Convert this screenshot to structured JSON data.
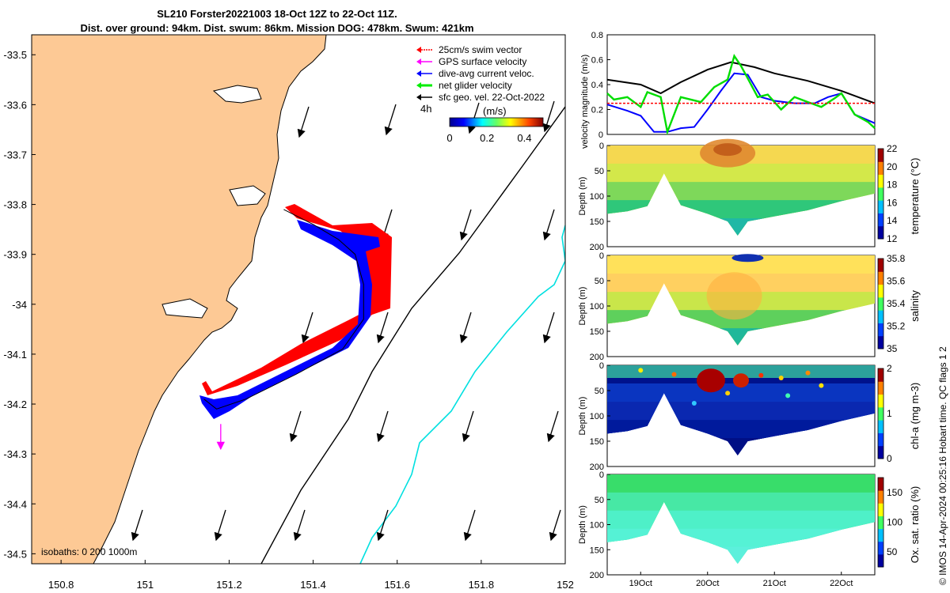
{
  "title_line1": "SL210 Forster20221003 18-Oct 12Z to 22-Oct 11Z.",
  "title_line2": "Dist. over ground: 94km. Dist. swum: 86km. Mission DOG: 478km. Swum: 421km",
  "credit": "© IMOS 14-Apr-2024 00:25:16 Hobart time. QC flags 1  2",
  "legend": [
    {
      "label": "25cm/s swim vector",
      "color": "#ff0000"
    },
    {
      "label": "GPS surface velocity",
      "color": "#ff00ff"
    },
    {
      "label": "dive-avg current veloc.",
      "color": "#0000ff"
    },
    {
      "label": "net glider velocity",
      "color": "#00ee00"
    },
    {
      "label": "sfc geo. vel. 22-Oct-2022",
      "color": "#000000"
    }
  ],
  "legend_4h": "4h",
  "colorbar": {
    "label": "(m/s)",
    "ticks": [
      "0",
      "0.2",
      "0.4"
    ],
    "range": [
      0,
      0.5
    ]
  },
  "isobaths_text": "isobaths: 0   200  1000m",
  "chart_data": [
    {
      "type": "map",
      "xticks": [
        "150.8",
        "151",
        "151.2",
        "151.4",
        "151.6",
        "151.8",
        "152"
      ],
      "yticks": [
        "-33.5",
        "-33.6",
        "-33.7",
        "-33.8",
        "-33.9",
        "-34",
        "-34.1",
        "-34.2",
        "-34.3",
        "-34.4",
        "-34.5"
      ],
      "xlim": [
        150.73,
        152.0
      ],
      "ylim": [
        -34.52,
        -33.46
      ],
      "glider_track": [
        [
          151.33,
          -33.81
        ],
        [
          151.4,
          -33.84
        ],
        [
          151.46,
          -33.87
        ],
        [
          151.5,
          -33.9
        ],
        [
          151.52,
          -33.96
        ],
        [
          151.52,
          -34.03
        ],
        [
          151.47,
          -34.09
        ],
        [
          151.36,
          -34.14
        ],
        [
          151.24,
          -34.19
        ],
        [
          151.17,
          -34.21
        ],
        [
          151.14,
          -34.19
        ]
      ],
      "gps_surface_velocity": [
        [
          151.18,
          -34.24
        ],
        [
          151.18,
          -34.29
        ]
      ]
    },
    {
      "type": "line",
      "ylabel": "velocity magnitude (m/s)",
      "ylim": [
        0,
        0.8
      ],
      "yticks": [
        "0",
        "0.2",
        "0.4",
        "0.6",
        "0.8"
      ],
      "xlim": [
        18.5,
        22.5
      ],
      "series": [
        {
          "name": "sfc geo. vel.",
          "color": "#000000",
          "x": [
            18.5,
            19.0,
            19.3,
            19.6,
            20.0,
            20.35,
            20.7,
            21.0,
            21.5,
            22.0,
            22.5
          ],
          "values": [
            0.44,
            0.4,
            0.33,
            0.42,
            0.52,
            0.58,
            0.54,
            0.49,
            0.43,
            0.35,
            0.25
          ]
        },
        {
          "name": "dive-avg current veloc.",
          "color": "#0000ff",
          "x": [
            18.5,
            18.8,
            19.0,
            19.2,
            19.4,
            19.6,
            19.8,
            20.0,
            20.2,
            20.4,
            20.6,
            20.8,
            21.0,
            21.3,
            21.6,
            21.8,
            22.0,
            22.2,
            22.5
          ],
          "values": [
            0.24,
            0.19,
            0.15,
            0.02,
            0.02,
            0.05,
            0.06,
            0.2,
            0.35,
            0.49,
            0.48,
            0.3,
            0.27,
            0.25,
            0.25,
            0.3,
            0.33,
            0.16,
            0.09
          ]
        },
        {
          "name": "net glider velocity",
          "color": "#00dd00",
          "x": [
            18.5,
            18.6,
            18.8,
            19.0,
            19.1,
            19.3,
            19.4,
            19.6,
            19.9,
            20.1,
            20.3,
            20.4,
            20.5,
            20.6,
            20.75,
            20.9,
            21.1,
            21.3,
            21.5,
            21.7,
            21.9,
            22.0,
            22.2,
            22.4,
            22.5
          ],
          "values": [
            0.33,
            0.28,
            0.3,
            0.22,
            0.34,
            0.3,
            0.02,
            0.3,
            0.26,
            0.38,
            0.44,
            0.63,
            0.55,
            0.45,
            0.3,
            0.32,
            0.2,
            0.3,
            0.26,
            0.22,
            0.29,
            0.33,
            0.16,
            0.1,
            0.05
          ]
        },
        {
          "name": "25cm/s swim vector",
          "color": "#ff0000",
          "x": [
            18.5,
            22.5
          ],
          "values": [
            0.25,
            0.25
          ]
        }
      ]
    },
    {
      "type": "heatmap",
      "ylabel": "Depth (m)",
      "cbar_label": "temperature (°C)",
      "ylim": [
        0,
        200
      ],
      "yticks": [
        "0",
        "50",
        "100",
        "150",
        "200"
      ],
      "cbar_ticks": [
        "12",
        "14",
        "16",
        "18",
        "20",
        "22"
      ],
      "cbar_range": [
        12,
        22
      ]
    },
    {
      "type": "heatmap",
      "ylabel": "Depth (m)",
      "cbar_label": "salinity",
      "ylim": [
        0,
        200
      ],
      "yticks": [
        "0",
        "50",
        "100",
        "150",
        "200"
      ],
      "cbar_ticks": [
        "35",
        "35.2",
        "35.4",
        "35.6",
        "35.8"
      ],
      "cbar_range": [
        35,
        35.8
      ]
    },
    {
      "type": "heatmap",
      "ylabel": "Depth (m)",
      "cbar_label": "chl-a (mg m-3)",
      "ylim": [
        0,
        200
      ],
      "yticks": [
        "0",
        "50",
        "100",
        "150",
        "200"
      ],
      "cbar_ticks": [
        "0",
        "1",
        "2"
      ],
      "cbar_range": [
        0,
        2
      ]
    },
    {
      "type": "heatmap",
      "ylabel": "Depth (m)",
      "cbar_label": "Ox. sat. ratio (%)",
      "ylim": [
        0,
        200
      ],
      "yticks": [
        "0",
        "50",
        "100",
        "150",
        "200"
      ],
      "xticks": [
        "19Oct",
        "20Oct",
        "21Oct",
        "22Oct"
      ],
      "cbar_ticks": [
        "50",
        "100",
        "150"
      ],
      "cbar_range": [
        25,
        175
      ]
    }
  ]
}
